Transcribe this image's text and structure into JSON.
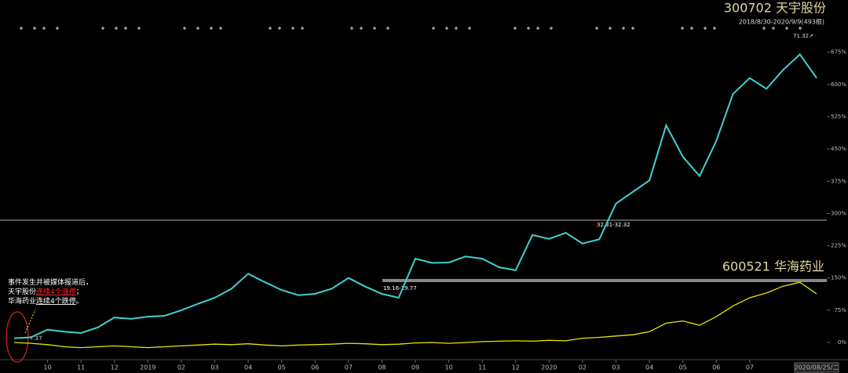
{
  "chart_data": {
    "type": "line",
    "title": "300702 天宇股份",
    "subtitle": "2018/8/30-2020/9/9(493根)",
    "categories": [
      null,
      null,
      "10",
      null,
      "11",
      null,
      "12",
      null,
      "2019",
      null,
      "02",
      null,
      "03",
      null,
      "04",
      null,
      "05",
      null,
      "06",
      null,
      "07",
      null,
      "08",
      null,
      "09",
      null,
      "10",
      null,
      "11",
      null,
      "12",
      null,
      "2020",
      null,
      "02",
      null,
      "03",
      null,
      "04",
      null,
      "05",
      null,
      "06",
      null,
      "07",
      null,
      null,
      null,
      "2020/08/25/二"
    ],
    "series": [
      {
        "name": "300702 天宇股份",
        "color": "#3fd0d0",
        "values": [
          10,
          12,
          30,
          25,
          22,
          35,
          58,
          55,
          60,
          62,
          75,
          90,
          104,
          125,
          160,
          140,
          122,
          110,
          113,
          125,
          150,
          130,
          113,
          104,
          195,
          185,
          186,
          200,
          195,
          175,
          168,
          250,
          241,
          255,
          230,
          240,
          323,
          350,
          377,
          505,
          432,
          387,
          469,
          578,
          615,
          590,
          634,
          670,
          615
        ]
      },
      {
        "name": "600521 华海药业",
        "color": "#e6e600",
        "values": [
          0,
          -2,
          -5,
          -10,
          -12,
          -10,
          -8,
          -10,
          -12,
          -10,
          -8,
          -6,
          -4,
          -5,
          -3,
          -6,
          -8,
          -6,
          -5,
          -4,
          -2,
          -3,
          -5,
          -4,
          -1,
          0,
          -2,
          0,
          2,
          3,
          4,
          3,
          5,
          4,
          10,
          12,
          15,
          18,
          25,
          45,
          50,
          40,
          60,
          85,
          104,
          115,
          131,
          140,
          113
        ]
      }
    ],
    "ylim": [
      -40,
      740
    ],
    "yticks": [
      {
        "value": 0,
        "label": "0%"
      },
      {
        "value": 75,
        "label": "75%"
      },
      {
        "value": 150,
        "label": "150%"
      },
      {
        "value": 225,
        "label": "225%"
      },
      {
        "value": 300,
        "label": "300%"
      },
      {
        "value": 375,
        "label": "375%"
      },
      {
        "value": 450,
        "label": "450%"
      },
      {
        "value": 525,
        "label": "525%"
      },
      {
        "value": 600,
        "label": "600%"
      },
      {
        "value": 675,
        "label": "675%"
      }
    ],
    "annotations": {
      "high": "71.32↗",
      "low": "7.37",
      "level1": "19.16-19.77",
      "level2": "32.31-32.32",
      "note": [
        [
          "事件发生并被媒体报道后，"
        ],
        [
          "天宇股份",
          "连续4个涨停",
          "；"
        ],
        [
          "华海药业",
          "连续4个跌停",
          "。"
        ]
      ]
    },
    "grid": false
  }
}
